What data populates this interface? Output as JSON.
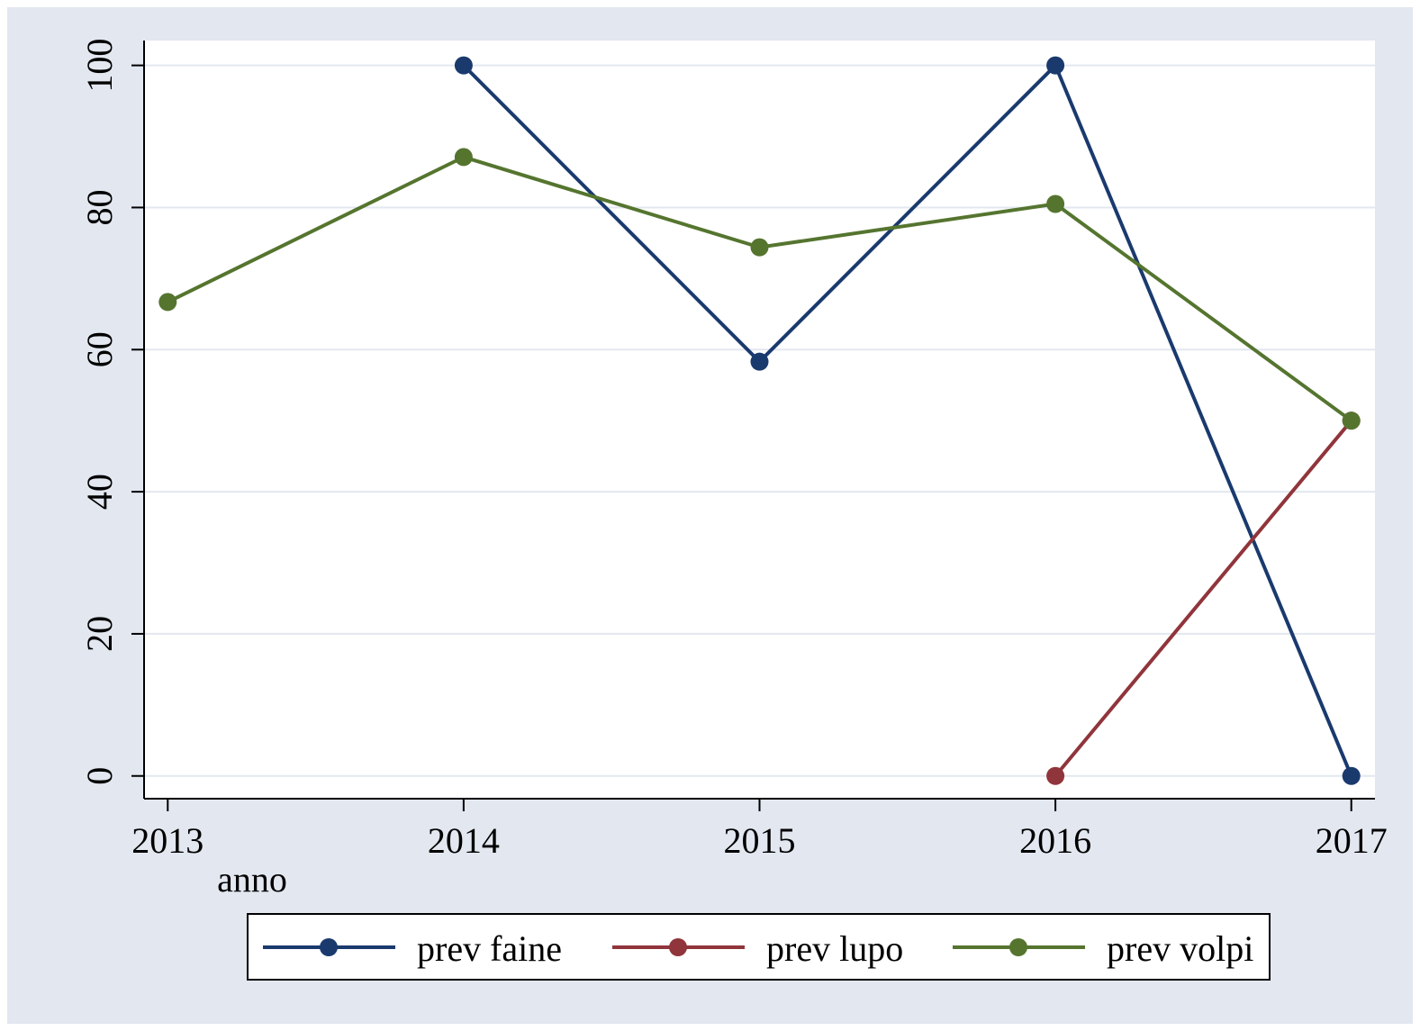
{
  "chart_data": {
    "type": "line",
    "x": [
      2013,
      2014,
      2015,
      2016,
      2017
    ],
    "x_label": "anno",
    "series": [
      {
        "name": "prev faine",
        "color": "#1a3a6e",
        "values": [
          null,
          100,
          58.3,
          100,
          0
        ]
      },
      {
        "name": "prev lupo",
        "color": "#90353b",
        "values": [
          null,
          null,
          null,
          0,
          50
        ]
      },
      {
        "name": "prev volpi",
        "color": "#55752f",
        "values": [
          66.7,
          87.1,
          74.4,
          80.5,
          50
        ]
      }
    ],
    "xlim": [
      2012.92,
      2017.08
    ],
    "xticks": [
      2013,
      2014,
      2015,
      2016,
      2017
    ],
    "ylim": [
      -3.2,
      103.5
    ],
    "yticks": [
      0,
      20,
      40,
      60,
      80,
      100
    ],
    "grid": true,
    "legend": "bottom"
  }
}
